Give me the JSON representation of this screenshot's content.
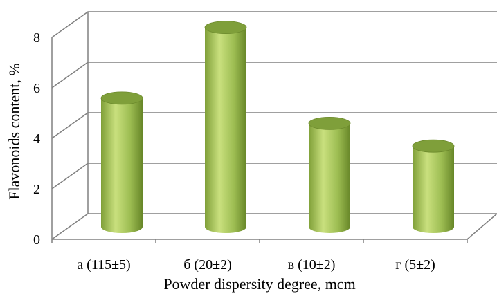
{
  "chart_data": {
    "type": "bar",
    "style": "3d-cylinder",
    "title": "",
    "xlabel": "Powder dispersity degree, mcm",
    "ylabel": "Flavonoids content, %",
    "categories": [
      "а (115±5)",
      "б (20±2)",
      "в (10±2)",
      "г (5±2)"
    ],
    "values": [
      5.1,
      7.9,
      4.1,
      3.2
    ],
    "ylim": [
      0,
      8
    ],
    "yticks": [
      "0",
      "2",
      "4",
      "6",
      "8"
    ],
    "grid": true,
    "legend": "none",
    "colors": {
      "bar_light": "#c6df7a",
      "bar_mid": "#9bbb59",
      "bar_dark": "#5f7d24",
      "bar_top": "#7f9f3a",
      "grid": "#808080"
    }
  }
}
